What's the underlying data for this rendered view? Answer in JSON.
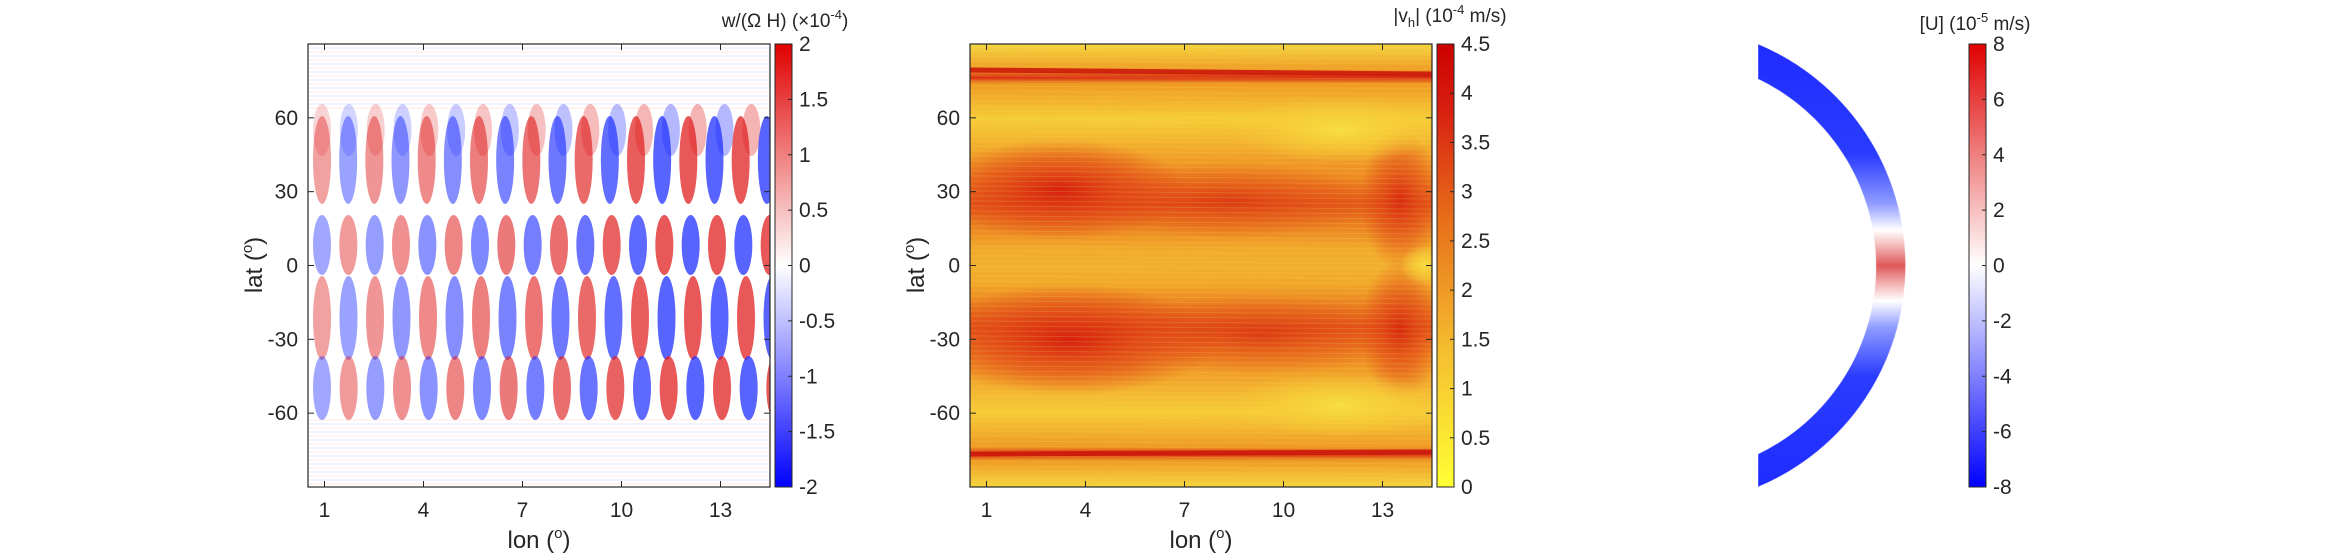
{
  "chart_data": [
    {
      "type": "heatmap",
      "panel": "left",
      "xlabel": "lon (",
      "xlabel_sup": "o",
      "xlabel_end": ")",
      "ylabel": "lat (",
      "ylabel_sup": "o",
      "ylabel_end": ")",
      "xlim": [
        0.5,
        14.5
      ],
      "ylim": [
        -90,
        90
      ],
      "xticks": [
        "1",
        "4",
        "7",
        "10",
        "13"
      ],
      "xtick_values": [
        1,
        4,
        7,
        10,
        13
      ],
      "yticks": [
        "-60",
        "-30",
        "0",
        "30",
        "60"
      ],
      "ytick_values": [
        -60,
        -30,
        0,
        30,
        60
      ],
      "colorbar": {
        "title": "w/(Ω H) (×10",
        "title_sup": "-4",
        "title_end": ")",
        "ticks": [
          "-2",
          "-1.5",
          "-1",
          "-0.5",
          "0",
          "0.5",
          "1",
          "1.5",
          "2"
        ],
        "tick_values": [
          -2,
          -1.5,
          -1,
          -0.5,
          0,
          0.5,
          1,
          1.5,
          2
        ],
        "colormap": [
          "#0000ff",
          "#ffffff",
          "#e00000"
        ]
      },
      "field": "alternating positive/negative vertical-velocity bands, about 18 bands across longitude, strongest between 45S and 45N"
    },
    {
      "type": "heatmap",
      "panel": "middle",
      "xlabel": "lon (",
      "xlabel_sup": "o",
      "xlabel_end": ")",
      "ylabel": "lat (",
      "ylabel_sup": "o",
      "ylabel_end": ")",
      "xlim": [
        0.5,
        14.5
      ],
      "ylim": [
        -90,
        90
      ],
      "xticks": [
        "1",
        "4",
        "7",
        "10",
        "13"
      ],
      "xtick_values": [
        1,
        4,
        7,
        10,
        13
      ],
      "yticks": [
        "-60",
        "-30",
        "0",
        "30",
        "60"
      ],
      "ytick_values": [
        -60,
        -30,
        0,
        30,
        60
      ],
      "colorbar": {
        "title": "|v",
        "title_sub": "h",
        "title_mid": "| (10",
        "title_sup": "-4",
        "title_end": " m/s)",
        "ticks": [
          "0",
          "0.5",
          "1",
          "1.5",
          "2",
          "2.5",
          "3",
          "3.5",
          "4",
          "4.5"
        ],
        "tick_values": [
          0,
          0.5,
          1,
          1.5,
          2,
          2.5,
          3,
          3.5,
          4,
          4.5
        ],
        "colormap": [
          "#ffff33",
          "#f0a020",
          "#e04010",
          "#cc0000"
        ]
      },
      "field": "horizontal velocity magnitude, maxima near 25N and 25S on the west side and narrow bands near 70N and 70S"
    },
    {
      "type": "heatmap",
      "panel": "right",
      "projection": "meridional half-annulus",
      "colorbar": {
        "title": "[U] (10",
        "title_sup": "-5",
        "title_end": " m/s)",
        "ticks": [
          "-8",
          "-6",
          "-4",
          "-2",
          "0",
          "2",
          "4",
          "6",
          "8"
        ],
        "tick_values": [
          -8,
          -6,
          -4,
          -2,
          0,
          2,
          4,
          6,
          8
        ],
        "colormap": [
          "#0000ff",
          "#ffffff",
          "#e00000"
        ]
      },
      "field": "zonal-mean zonal flow: westward (negative) at high latitudes, eastward (positive) near the equator"
    }
  ],
  "colors": {
    "axis": "#262626",
    "blue": "#0000ff",
    "red": "#e00000",
    "yellow": "#ffff33"
  }
}
